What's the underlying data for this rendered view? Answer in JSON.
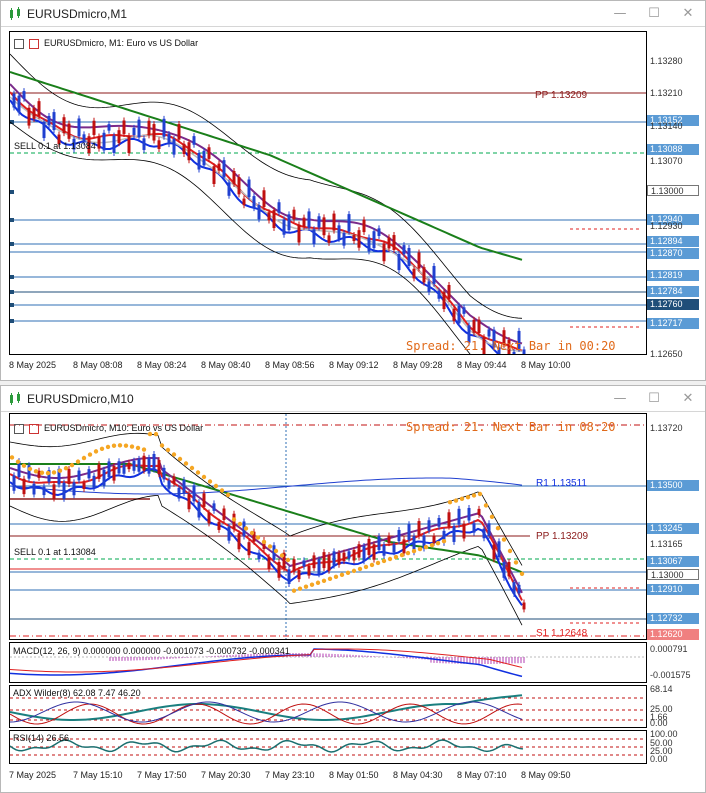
{
  "win1": {
    "title": "EURUSDmicro,M1",
    "header": "EURUSDmicro, M1:  Euro vs US Dollar",
    "pivot_label": "PP 1.13209",
    "sell_label": "SELL 0.1 at 1.13084",
    "spread_text": "Spread: 21. Next Bar in 00:20",
    "prices": [
      "1.13280",
      "1.13210",
      "1.13152",
      "1.13140",
      "1.13088",
      "1.13070",
      "1.13000",
      "1.12940",
      "1.12930",
      "1.12894",
      "1.12870",
      "1.12819",
      "1.12784",
      "1.12760",
      "1.12717",
      "1.12650"
    ],
    "times": [
      "8 May 2025",
      "8 May 08:08",
      "8 May 08:24",
      "8 May 08:40",
      "8 May 08:56",
      "8 May 09:12",
      "8 May 09:28",
      "8 May 09:44",
      "8 May 10:00"
    ]
  },
  "win2": {
    "title": "EURUSDmicro,M10",
    "header": "EURUSDmicro, M10:  Euro vs US Dollar",
    "r1_label": "R1 1.13511",
    "pivot_label": "PP 1.13209",
    "s1_label": "S1 1.12648",
    "sell_label": "SELL 0.1 at 1.13084",
    "spread_text": "Spread: 21. Next Bar in 08:20",
    "prices": [
      "1.13720",
      "1.13500",
      "1.13245",
      "1.13165",
      "1.13067",
      "1.13000",
      "1.12910",
      "1.12732",
      "1.12620"
    ],
    "macd_label": "MACD(12, 26, 9) 0.000000 0.000000 -0.001073 -0.000732 -0.000341",
    "macd_scale": [
      "0.000791",
      "-0.001575"
    ],
    "adx_label": "ADX Wilder(8) 62.08 7.47 46.20",
    "adx_scale": [
      "68.14",
      "25.00",
      "1.66",
      "0.00"
    ],
    "rsi_label": "RSI(14) 26.56",
    "rsi_scale": [
      "100.00",
      "50.00",
      "25.00",
      "0.00"
    ],
    "times": [
      "7 May 2025",
      "7 May 15:10",
      "7 May 17:50",
      "7 May 20:30",
      "7 May 23:10",
      "8 May 01:50",
      "8 May 04:30",
      "8 May 07:10",
      "8 May 09:50"
    ]
  },
  "colors": {
    "pivot": "#8b1a1a",
    "sell": "#00a84f",
    "price_box": "#5b9bd5",
    "ma_green": "#1a7f1a",
    "ma_purple": "#7a2a8a",
    "ma_red": "#e02020",
    "ma_blue": "#1030e0",
    "spread": "#e06a1a"
  }
}
